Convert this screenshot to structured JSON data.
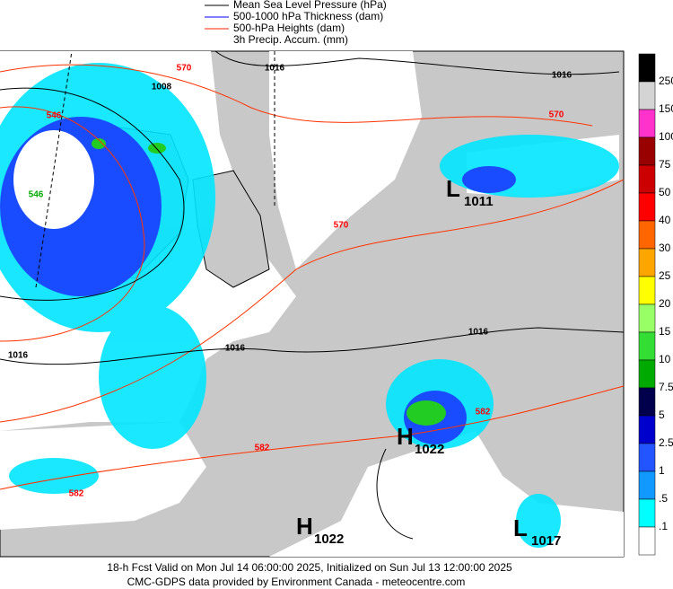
{
  "legend": {
    "items": [
      {
        "label": "Mean Sea Level Pressure (hPa)",
        "color": "#000000"
      },
      {
        "label": "500-1000 hPa Thickness (dam)",
        "color": "#0000ff"
      },
      {
        "label": "500-hPa Heights (dam)",
        "color": "#ff2200"
      },
      {
        "label": "3h Precip. Accum. (mm)"
      }
    ]
  },
  "colorbar": {
    "labels": [
      "250",
      "150",
      "100",
      "75",
      "50",
      "40",
      "30",
      "25",
      "20",
      "15",
      "10",
      "7.5",
      "5",
      "2.5",
      "1",
      ".5",
      ".1"
    ],
    "colors": [
      "#000000",
      "#d4d4d4",
      "#ff33cc",
      "#990000",
      "#cc0000",
      "#ff0000",
      "#ff6600",
      "#ffa500",
      "#ffff00",
      "#99ff66",
      "#33dd33",
      "#00aa00",
      "#00004d",
      "#0000cc",
      "#2255ff",
      "#1199ff",
      "#00ffff",
      "#ffffff"
    ]
  },
  "map": {
    "contour_labels": [
      "570",
      "1016",
      "1008",
      "1016",
      "546",
      "570",
      "546",
      "570",
      "1016",
      "1016",
      "1016",
      "582",
      "582",
      "582"
    ],
    "pressure_centers": [
      {
        "letter": "L",
        "value": "1011"
      },
      {
        "letter": "H",
        "value": "1022"
      },
      {
        "letter": "H",
        "value": "1022"
      },
      {
        "letter": "L",
        "value": "1017"
      }
    ]
  },
  "footer": [
    "18-h Fcst Valid on Mon Jul 14 06:00:00 2025, Initialized on Sun Jul 13 12:00:00 2025",
    "CMC-GDPS data provided by Environment Canada - meteocentre.com"
  ]
}
